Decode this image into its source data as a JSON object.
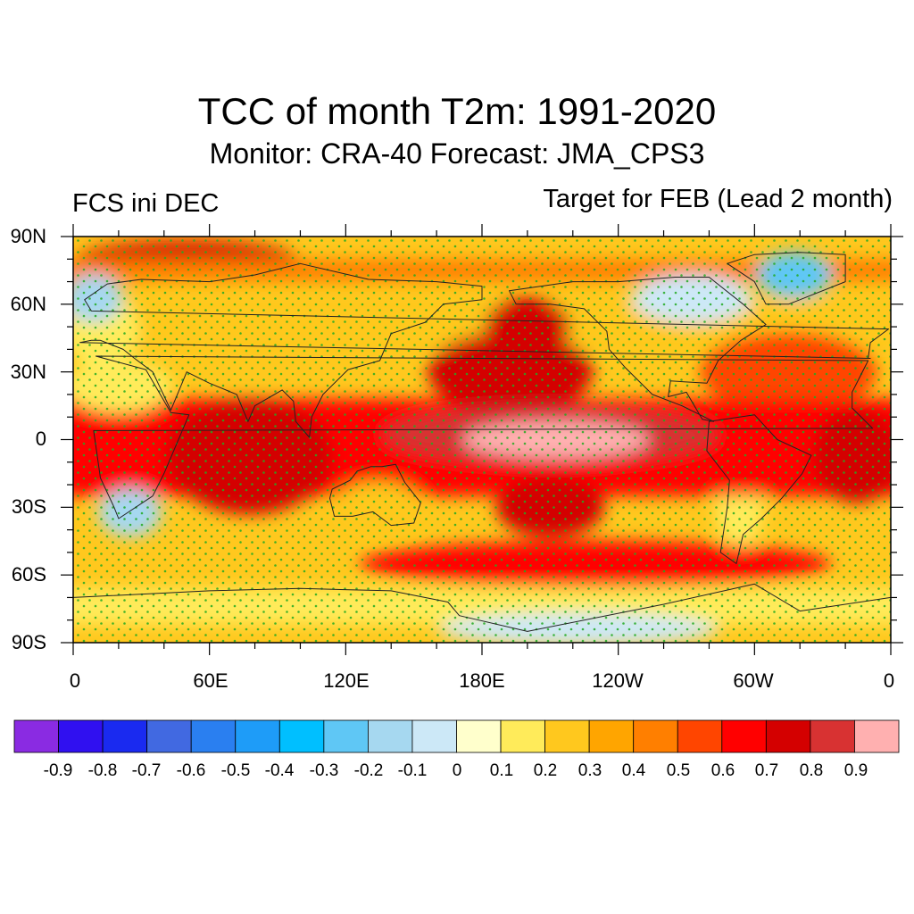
{
  "figure": {
    "title": "TCC of month T2m: 1991-2020",
    "subtitle": "Monitor: CRA-40   Forecast: JMA_CPS3",
    "left_label": "FCS ini DEC",
    "right_label": "Target for FEB (Lead 2 month)"
  },
  "axes": {
    "lat_labels": [
      "90N",
      "60N",
      "30N",
      "0",
      "30S",
      "60S",
      "90S"
    ],
    "lat_values": [
      90,
      60,
      30,
      0,
      -30,
      -60,
      -90
    ],
    "lon_labels": [
      "0",
      "60E",
      "120E",
      "180E",
      "120W",
      "60W",
      "0"
    ],
    "lon_values": [
      0,
      60,
      120,
      180,
      240,
      300,
      360
    ]
  },
  "colorbar": {
    "labels": [
      "-0.9",
      "-0.8",
      "-0.7",
      "-0.6",
      "-0.5",
      "-0.4",
      "-0.3",
      "-0.2",
      "-0.1",
      "0",
      "0.1",
      "0.2",
      "0.3",
      "0.4",
      "0.5",
      "0.6",
      "0.7",
      "0.8",
      "0.9"
    ],
    "colors": [
      "#8a2be2",
      "#3010f0",
      "#1a2af0",
      "#4169e1",
      "#2a7ff0",
      "#1e9cf8",
      "#00bfff",
      "#5fc7f5",
      "#a6d8f0",
      "#cce8f7",
      "#ffffcc",
      "#ffeb5a",
      "#ffc81e",
      "#ffa500",
      "#ff7f00",
      "#ff4500",
      "#ff0000",
      "#d40000",
      "#d83232",
      "#ffb0b0"
    ]
  },
  "map": {
    "background_color": "#ffc81e",
    "stipple_color": "#22aa22",
    "regions": [
      {
        "name": "south-america-sw",
        "level": 0.1,
        "lon": [
          287,
          300
        ],
        "lat": [
          -45,
          -15
        ]
      },
      {
        "name": "nh-high-lat-band",
        "level": 0.2,
        "lon": [
          0,
          360
        ],
        "lat": [
          40,
          62
        ]
      },
      {
        "name": "west-europe",
        "level": 0.1,
        "lon": [
          0,
          25
        ],
        "lat": [
          35,
          62
        ]
      },
      {
        "name": "north-atlantic-warm",
        "level": 0.5,
        "lon": [
          280,
          350
        ],
        "lat": [
          15,
          45
        ]
      },
      {
        "name": "equatorial-belt",
        "level": 0.6,
        "lon": [
          0,
          360
        ],
        "lat": [
          -25,
          18
        ]
      },
      {
        "name": "north-pacific",
        "level": 0.7,
        "lon": [
          160,
          225
        ],
        "lat": [
          15,
          45
        ]
      },
      {
        "name": "north-pacific-core",
        "level": 0.7,
        "lon": [
          185,
          215
        ],
        "lat": [
          40,
          60
        ]
      },
      {
        "name": "indian-ocean-core",
        "level": 0.7,
        "lon": [
          45,
          110
        ],
        "lat": [
          -30,
          15
        ]
      },
      {
        "name": "atlantic-equatorial-core",
        "level": 0.7,
        "lon": [
          330,
          360
        ],
        "lat": [
          -25,
          10
        ]
      },
      {
        "name": "southern-ocean-band",
        "level": 0.6,
        "lon": [
          130,
          330
        ],
        "lat": [
          -62,
          -48
        ]
      },
      {
        "name": "sw-pacific",
        "level": 0.7,
        "lon": [
          190,
          230
        ],
        "lat": [
          -40,
          -20
        ]
      },
      {
        "name": "tropical-pacific",
        "level": 0.8,
        "lon": [
          140,
          280
        ],
        "lat": [
          -8,
          12
        ]
      },
      {
        "name": "nino-core",
        "level": 0.9,
        "lon": [
          175,
          250
        ],
        "lat": [
          -5,
          5
        ]
      },
      {
        "name": "arctic-west",
        "level": 0.7,
        "lon": [
          5,
          95
        ],
        "lat": [
          75,
          85
        ]
      },
      {
        "name": "arctic-band",
        "level": 0.4,
        "lon": [
          0,
          360
        ],
        "lat": [
          70,
          80
        ]
      },
      {
        "name": "greenland-cool",
        "level": -0.3,
        "lon": [
          305,
          330
        ],
        "lat": [
          66,
          80
        ]
      },
      {
        "name": "canada-cool",
        "level": -0.1,
        "lon": [
          250,
          295
        ],
        "lat": [
          55,
          70
        ]
      },
      {
        "name": "scandinavia-cool",
        "level": -0.2,
        "lon": [
          0,
          18
        ],
        "lat": [
          55,
          70
        ]
      },
      {
        "name": "sahara-mixed",
        "level": 0.1,
        "lon": [
          0,
          40
        ],
        "lat": [
          15,
          32
        ]
      },
      {
        "name": "africa-south-cool",
        "level": -0.2,
        "lon": [
          15,
          35
        ],
        "lat": [
          -40,
          -25
        ]
      },
      {
        "name": "australia-mixed",
        "level": 0.2,
        "lon": [
          118,
          150
        ],
        "lat": [
          -38,
          -22
        ]
      },
      {
        "name": "antarctic-band",
        "level": 0.1,
        "lon": [
          0,
          360
        ],
        "lat": [
          -82,
          -66
        ]
      },
      {
        "name": "antarctic-cool",
        "level": -0.1,
        "lon": [
          165,
          280
        ],
        "lat": [
          -88,
          -80
        ]
      }
    ],
    "continents": [
      {
        "name": "africa",
        "points": [
          [
            -17,
            21
          ],
          [
            -10,
            35
          ],
          [
            10,
            37
          ],
          [
            32,
            31
          ],
          [
            43,
            12
          ],
          [
            51,
            11
          ],
          [
            40,
            -15
          ],
          [
            35,
            -25
          ],
          [
            20,
            -35
          ],
          [
            18,
            -30
          ],
          [
            12,
            -17
          ],
          [
            9,
            4
          ],
          [
            -8,
            5
          ],
          [
            -17,
            14
          ]
        ]
      },
      {
        "name": "eurasia",
        "points": [
          [
            -10,
            36
          ],
          [
            -9,
            43
          ],
          [
            -1,
            49
          ],
          [
            8,
            57
          ],
          [
            5,
            62
          ],
          [
            15,
            69
          ],
          [
            30,
            71
          ],
          [
            60,
            70
          ],
          [
            80,
            73
          ],
          [
            100,
            78
          ],
          [
            130,
            71
          ],
          [
            160,
            70
          ],
          [
            180,
            68
          ],
          [
            180,
            62
          ],
          [
            163,
            60
          ],
          [
            155,
            52
          ],
          [
            140,
            47
          ],
          [
            135,
            35
          ],
          [
            121,
            31
          ],
          [
            110,
            20
          ],
          [
            105,
            10
          ],
          [
            104,
            1
          ],
          [
            98,
            8
          ],
          [
            97,
            17
          ],
          [
            92,
            22
          ],
          [
            80,
            15
          ],
          [
            77,
            8
          ],
          [
            72,
            20
          ],
          [
            60,
            25
          ],
          [
            56,
            27
          ],
          [
            50,
            30
          ],
          [
            43,
            13
          ],
          [
            35,
            30
          ],
          [
            27,
            36
          ],
          [
            22,
            40
          ],
          [
            12,
            44
          ],
          [
            8,
            44
          ],
          [
            3,
            43
          ],
          [
            -9,
            36
          ]
        ]
      },
      {
        "name": "north-america",
        "points": [
          [
            -168,
            66
          ],
          [
            -140,
            70
          ],
          [
            -120,
            70
          ],
          [
            -95,
            72
          ],
          [
            -80,
            72
          ],
          [
            -65,
            60
          ],
          [
            -55,
            51
          ],
          [
            -66,
            44
          ],
          [
            -76,
            35
          ],
          [
            -81,
            25
          ],
          [
            -97,
            26
          ],
          [
            -98,
            19
          ],
          [
            -90,
            21
          ],
          [
            -83,
            9
          ],
          [
            -78,
            8
          ],
          [
            -92,
            15
          ],
          [
            -105,
            20
          ],
          [
            -117,
            32
          ],
          [
            -124,
            40
          ],
          [
            -125,
            48
          ],
          [
            -135,
            58
          ],
          [
            -150,
            60
          ],
          [
            -165,
            60
          ],
          [
            -168,
            66
          ]
        ]
      },
      {
        "name": "south-america",
        "points": [
          [
            -80,
            8
          ],
          [
            -60,
            11
          ],
          [
            -50,
            0
          ],
          [
            -35,
            -7
          ],
          [
            -39,
            -15
          ],
          [
            -48,
            -26
          ],
          [
            -57,
            -35
          ],
          [
            -65,
            -42
          ],
          [
            -68,
            -55
          ],
          [
            -75,
            -50
          ],
          [
            -72,
            -30
          ],
          [
            -71,
            -18
          ],
          [
            -81,
            -5
          ]
        ]
      },
      {
        "name": "australia",
        "points": [
          [
            114,
            -22
          ],
          [
            113,
            -26
          ],
          [
            115,
            -34
          ],
          [
            123,
            -34
          ],
          [
            132,
            -32
          ],
          [
            140,
            -38
          ],
          [
            150,
            -37
          ],
          [
            153,
            -28
          ],
          [
            146,
            -19
          ],
          [
            142,
            -11
          ],
          [
            136,
            -12
          ],
          [
            131,
            -12
          ],
          [
            125,
            -14
          ],
          [
            122,
            -18
          ]
        ]
      },
      {
        "name": "greenland",
        "points": [
          [
            -55,
            60
          ],
          [
            -45,
            60
          ],
          [
            -20,
            70
          ],
          [
            -20,
            82
          ],
          [
            -40,
            83
          ],
          [
            -60,
            82
          ],
          [
            -72,
            78
          ],
          [
            -60,
            70
          ]
        ]
      },
      {
        "name": "antarctica",
        "points": [
          [
            0,
            -70
          ],
          [
            60,
            -67
          ],
          [
            100,
            -66
          ],
          [
            140,
            -67
          ],
          [
            165,
            -72
          ],
          [
            170,
            -78
          ],
          [
            200,
            -85
          ],
          [
            260,
            -73
          ],
          [
            300,
            -64
          ],
          [
            320,
            -76
          ],
          [
            340,
            -73
          ],
          [
            360,
            -70
          ],
          [
            360,
            -90
          ],
          [
            0,
            -90
          ]
        ]
      }
    ]
  }
}
